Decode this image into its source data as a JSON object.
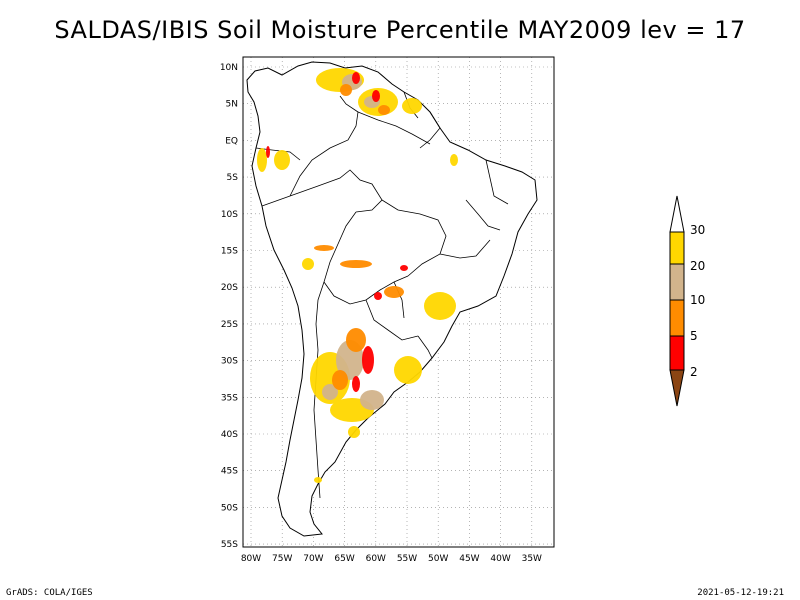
{
  "title": "SALDAS/IBIS Soil Moisture Percentile MAY2009 lev = 17",
  "latitudes": [
    "10N",
    "5N",
    "EQ",
    "5S",
    "10S",
    "15S",
    "20S",
    "25S",
    "30S",
    "35S",
    "40S",
    "45S",
    "50S",
    "55S"
  ],
  "longitudes": [
    "80W",
    "75W",
    "70W",
    "65W",
    "60W",
    "55W",
    "50W",
    "45W",
    "40W",
    "35W"
  ],
  "legend": {
    "labels": [
      "2",
      "5",
      "10",
      "20",
      "30"
    ],
    "colors": {
      "lt2": "#8B4513",
      "p2_5": "#FF0000",
      "p5_10": "#FF8C00",
      "p10_20": "#D2B48C",
      "p20_30": "#FFD700",
      "gt30": "#FFFFFF"
    }
  },
  "footer": {
    "left": "GrADS: COLA/IGES",
    "right": "2021-05-12-19:21"
  }
}
